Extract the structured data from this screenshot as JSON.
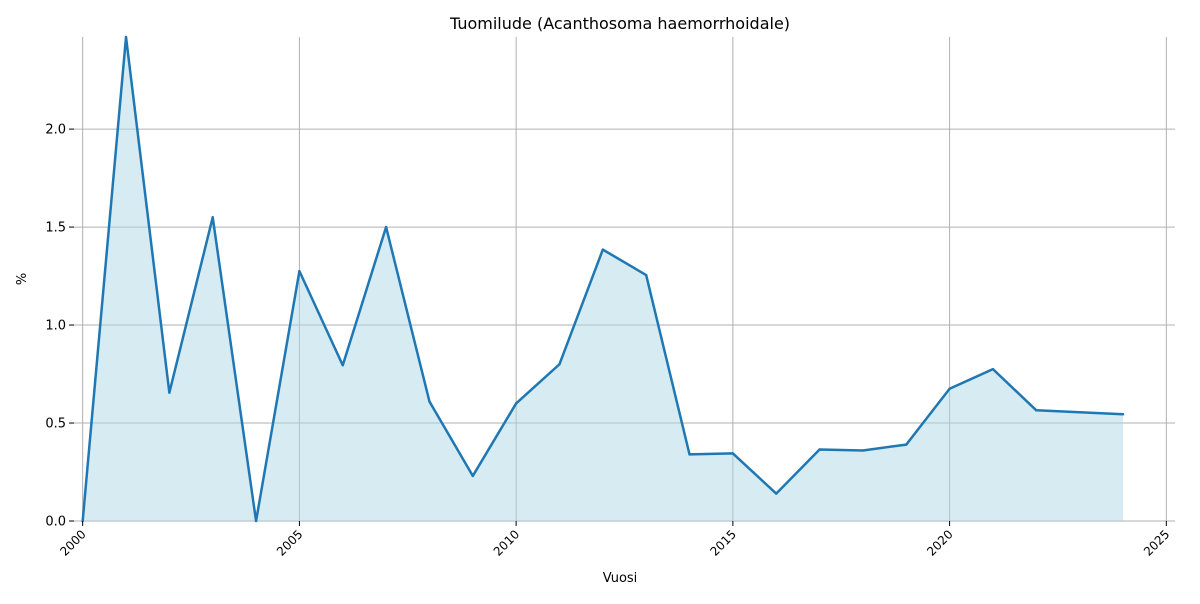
{
  "chart_data": {
    "type": "area",
    "title": "Tuomilude (Acanthosoma haemorrhoidale)",
    "xlabel": "Vuosi",
    "ylabel": "%",
    "xlim": [
      1999.8,
      2025.2
    ],
    "ylim": [
      0,
      2.47
    ],
    "x_ticks": [
      2000,
      2005,
      2010,
      2015,
      2020,
      2025
    ],
    "y_ticks": [
      0.0,
      0.5,
      1.0,
      1.5,
      2.0
    ],
    "y_tick_labels": [
      "0.0",
      "0.5",
      "1.0",
      "1.5",
      "2.0"
    ],
    "grid": true,
    "series": [
      {
        "x": [
          2000,
          2001,
          2002,
          2003,
          2004,
          2005,
          2006,
          2007,
          2008,
          2009,
          2010,
          2011,
          2012,
          2013,
          2014,
          2015,
          2016,
          2017,
          2018,
          2019,
          2020,
          2021,
          2022,
          2023,
          2024
        ],
        "y": [
          0.0,
          2.47,
          0.655,
          1.55,
          0.0,
          1.275,
          0.795,
          1.5,
          0.61,
          0.23,
          0.6,
          0.8,
          1.385,
          1.255,
          0.34,
          0.345,
          0.14,
          0.365,
          0.36,
          0.39,
          0.675,
          0.775,
          0.565,
          0.555,
          0.545
        ]
      }
    ],
    "colors": {
      "line": "#1f77b4",
      "fill": "#add8e6",
      "grid": "#b0b0b0"
    }
  }
}
